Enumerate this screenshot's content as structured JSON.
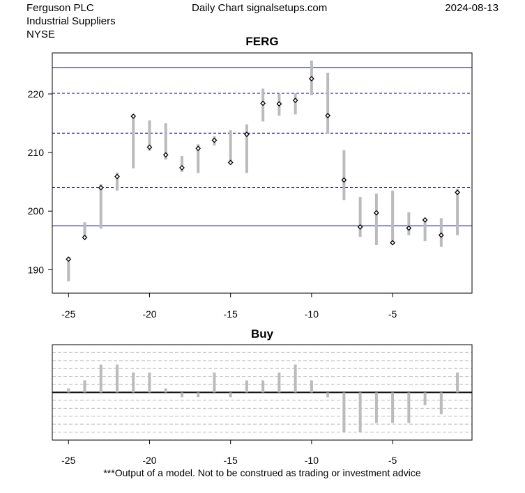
{
  "header": {
    "company": "Ferguson PLC",
    "sector": "Industrial Suppliers",
    "exchange": "NYSE",
    "source": "Daily Chart signalsetups.com",
    "date": "2024-08-13"
  },
  "footer": {
    "disclaimer": "***Output of a model. Not to be construed as trading or investment advice"
  },
  "chart_data": [
    {
      "type": "candlestick-range",
      "title": "FERG",
      "xlabel": "",
      "ylabel": "",
      "xlim": [
        -26,
        -0.1
      ],
      "ylim": [
        186,
        227
      ],
      "x_ticks": [
        -25,
        -20,
        -15,
        -10,
        -5
      ],
      "y_ticks": [
        190,
        200,
        210,
        220
      ],
      "line_color": "#bbbbbb",
      "marker_color": "#000000",
      "hlines": [
        {
          "y": 224.5,
          "style": "solid",
          "color": "#00008b"
        },
        {
          "y": 220.1,
          "style": "dashed",
          "color": "#00008b"
        },
        {
          "y": 213.3,
          "style": "dashed",
          "color": "#00008b"
        },
        {
          "y": 204.0,
          "style": "dashed",
          "color": "#00008b"
        },
        {
          "y": 197.5,
          "style": "solid",
          "color": "#00008b"
        }
      ],
      "bars": [
        {
          "x": -25,
          "low": 188.0,
          "high": 192.2,
          "close": 191.8
        },
        {
          "x": -24,
          "low": 195.2,
          "high": 198.1,
          "close": 195.5
        },
        {
          "x": -23,
          "low": 197.0,
          "high": 204.6,
          "close": 204.0
        },
        {
          "x": -22,
          "low": 203.5,
          "high": 206.6,
          "close": 205.9
        },
        {
          "x": -21,
          "low": 207.3,
          "high": 216.3,
          "close": 216.2
        },
        {
          "x": -20,
          "low": 210.3,
          "high": 215.5,
          "close": 210.9
        },
        {
          "x": -19,
          "low": 208.8,
          "high": 215.0,
          "close": 209.6
        },
        {
          "x": -18,
          "low": 206.7,
          "high": 209.4,
          "close": 207.4
        },
        {
          "x": -17,
          "low": 206.5,
          "high": 211.4,
          "close": 210.7
        },
        {
          "x": -16,
          "low": 211.2,
          "high": 212.8,
          "close": 212.1
        },
        {
          "x": -15,
          "low": 208.1,
          "high": 213.8,
          "close": 208.3
        },
        {
          "x": -14,
          "low": 206.5,
          "high": 214.8,
          "close": 213.1
        },
        {
          "x": -13,
          "low": 215.3,
          "high": 220.9,
          "close": 218.4
        },
        {
          "x": -12,
          "low": 216.3,
          "high": 220.0,
          "close": 218.3
        },
        {
          "x": -11,
          "low": 216.5,
          "high": 220.1,
          "close": 218.9
        },
        {
          "x": -10,
          "low": 219.8,
          "high": 225.7,
          "close": 222.6
        },
        {
          "x": -9,
          "low": 213.2,
          "high": 223.6,
          "close": 216.3
        },
        {
          "x": -8,
          "low": 201.9,
          "high": 210.4,
          "close": 205.3
        },
        {
          "x": -7,
          "low": 195.6,
          "high": 202.4,
          "close": 197.3
        },
        {
          "x": -6,
          "low": 194.2,
          "high": 203.0,
          "close": 199.7
        },
        {
          "x": -5,
          "low": 194.3,
          "high": 203.5,
          "close": 194.6
        },
        {
          "x": -4,
          "low": 195.9,
          "high": 199.8,
          "close": 197.1
        },
        {
          "x": -3,
          "low": 194.9,
          "high": 198.8,
          "close": 198.5
        },
        {
          "x": -2,
          "low": 193.9,
          "high": 198.8,
          "close": 195.9
        },
        {
          "x": -1,
          "low": 195.9,
          "high": 203.8,
          "close": 203.2
        }
      ]
    },
    {
      "type": "bar",
      "title": "Buy",
      "xlabel": "",
      "ylabel": "",
      "xlim": [
        -26,
        -0.1
      ],
      "ylim": [
        -1.2,
        1.2
      ],
      "x_ticks": [
        -25,
        -20,
        -15,
        -10,
        -5
      ],
      "baseline": 0,
      "grid": true,
      "grid_levels": [
        -1,
        -0.8,
        -0.6,
        -0.4,
        -0.2,
        0.2,
        0.4,
        0.6,
        0.8,
        1.0
      ],
      "bar_color": "#bbbbbb",
      "x": [
        -25,
        -24,
        -23,
        -22,
        -21,
        -20,
        -19,
        -18,
        -17,
        -16,
        -15,
        -14,
        -13,
        -12,
        -11,
        -10,
        -9,
        -8,
        -7,
        -6,
        -5,
        -4,
        -3,
        -2,
        -1
      ],
      "values": [
        0.1,
        0.3,
        0.7,
        0.7,
        0.5,
        0.5,
        0.1,
        -0.12,
        -0.12,
        0.5,
        -0.12,
        0.3,
        0.3,
        0.5,
        0.7,
        0.3,
        -0.12,
        -1.0,
        -1.0,
        -0.77,
        -0.77,
        -0.77,
        -0.32,
        -0.55,
        0.5
      ]
    }
  ]
}
